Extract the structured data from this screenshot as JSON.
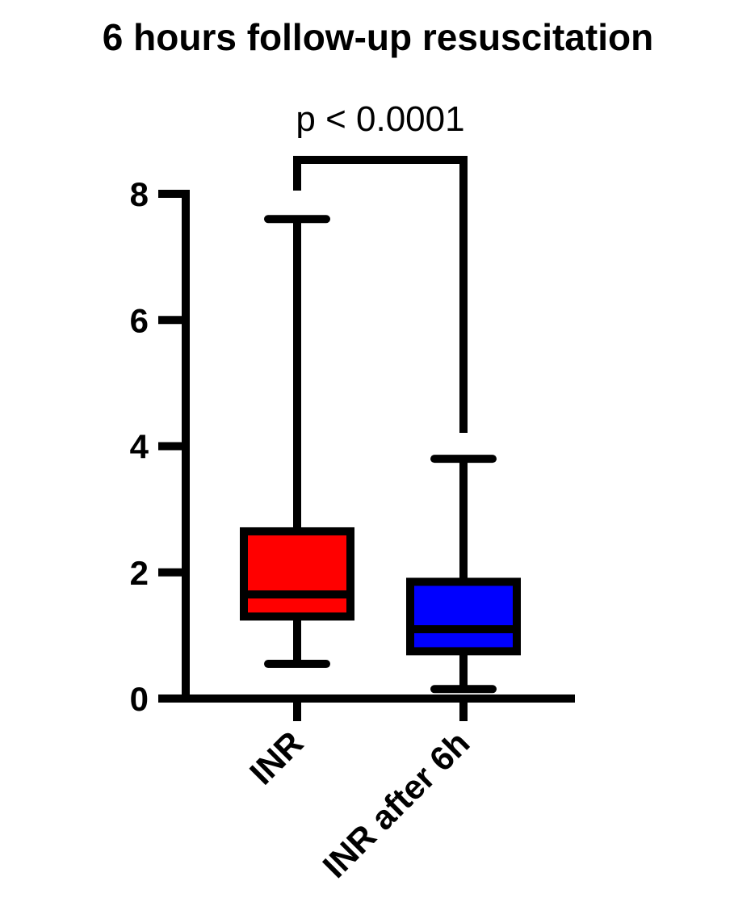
{
  "chart_data": {
    "type": "box",
    "title": "6 hours follow-up resuscitation",
    "xlabel": "",
    "ylabel": "",
    "ylim": [
      0,
      8
    ],
    "yticks": [
      0,
      2,
      4,
      6,
      8
    ],
    "categories": [
      "INR",
      "INR after 6h"
    ],
    "boxes": [
      {
        "category": "INR",
        "min": 0.55,
        "q1": 1.3,
        "median": 1.65,
        "q3": 2.65,
        "max": 7.6,
        "color": "#ff0000"
      },
      {
        "category": "INR after 6h",
        "min": 0.15,
        "q1": 0.75,
        "median": 1.1,
        "q3": 1.85,
        "max": 3.8,
        "color": "#0000ff"
      }
    ],
    "annotation": {
      "text": "p < 0.0001",
      "between": [
        "INR",
        "INR after 6h"
      ]
    },
    "grid": false,
    "legend": "none"
  }
}
